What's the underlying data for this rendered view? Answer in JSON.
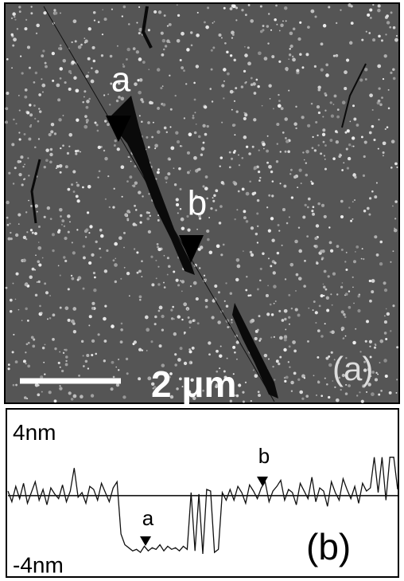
{
  "image_panel": {
    "marker_a": "a",
    "marker_b": "b",
    "scale_bar": "2 μm",
    "panel_label": "(a)"
  },
  "chart_data": {
    "type": "line",
    "panel_label": "(b)",
    "annotations": [
      "a",
      "b"
    ],
    "ylim": [
      -5.2,
      5.6
    ],
    "yticks": [
      {
        "value": 4,
        "label": "4nm"
      },
      {
        "value": -4,
        "label": "-4nm"
      }
    ],
    "series": [
      {
        "color": "#111111",
        "values": [
          0.3,
          -0.4,
          0.6,
          -0.2,
          0.8,
          -0.5,
          0.2,
          0.9,
          -0.3,
          0.4,
          -0.6,
          0.5,
          0.1,
          -0.2,
          0.7,
          -0.4,
          0.3,
          1.8,
          -0.1,
          0.2,
          -0.5,
          0.6,
          0.4,
          -0.3,
          0.8,
          0.2,
          -0.4,
          0.5,
          0.9,
          -2.5,
          -3.2,
          -3.4,
          -3.6,
          -3.5,
          -3.7,
          -3.3,
          -3.6,
          -3.4,
          -3.5,
          -3.2,
          -3.6,
          -3.3,
          -3.5,
          -3.4,
          -3.6,
          -3.3,
          -3.5,
          0.2,
          -3.6,
          0.1,
          -3.8,
          0.4,
          0.3,
          -3.7,
          -3.5,
          0.2,
          -0.3,
          0.4,
          -0.3,
          0.6,
          0.2,
          -0.5,
          0.7,
          0.3,
          -0.2,
          0.5,
          0.9,
          -0.4,
          0.3,
          0.6,
          1.0,
          -0.3,
          0.4,
          0.2,
          -0.6,
          0.8,
          0.3,
          -0.2,
          1.2,
          -0.4,
          0.5,
          0.3,
          -0.7,
          0.9,
          0.2,
          -0.3,
          1.1,
          0.4,
          -0.2,
          0.6,
          -0.5,
          0.8,
          0.3,
          0.5,
          2.5,
          0.2,
          2.5,
          -0.3,
          2.5,
          2.5,
          0.4
        ]
      }
    ]
  }
}
